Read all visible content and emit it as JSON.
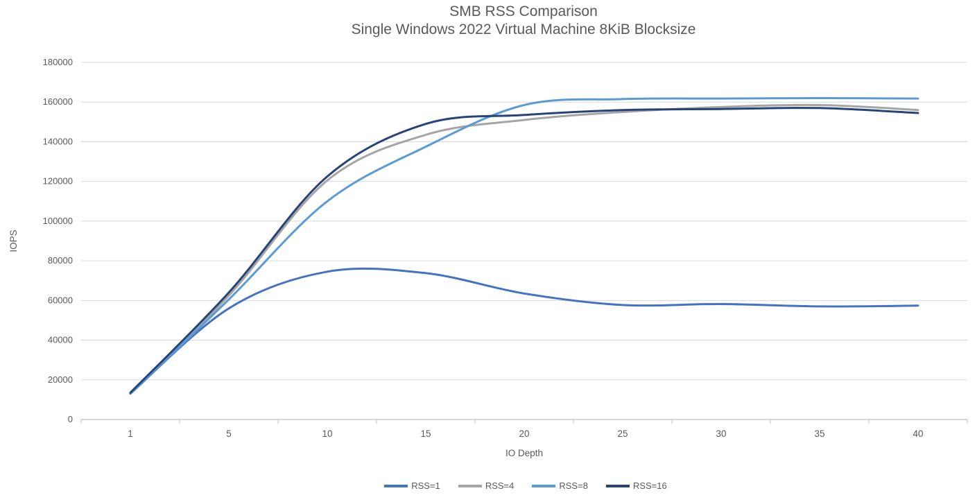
{
  "chart_data": {
    "type": "line",
    "title": "SMB RSS Comparison",
    "subtitle": "Single Windows 2022 Virtual Machine 8KiB Blocksize",
    "xlabel": "IO Depth",
    "ylabel": "IOPS",
    "categories": [
      1,
      5,
      10,
      15,
      20,
      25,
      30,
      35,
      40
    ],
    "series": [
      {
        "name": "RSS=1",
        "color": "#4472C4",
        "values": [
          13000,
          56000,
          74500,
          73800,
          63500,
          57700,
          58200,
          57000,
          57400
        ]
      },
      {
        "name": "RSS=4",
        "color": "#A5A5A5",
        "values": [
          13300,
          62500,
          120500,
          143500,
          151000,
          155000,
          157500,
          158500,
          156000
        ]
      },
      {
        "name": "RSS=8",
        "color": "#5B9BD5",
        "values": [
          13200,
          60500,
          110000,
          137500,
          158500,
          161500,
          161800,
          162000,
          161800
        ]
      },
      {
        "name": "RSS=16",
        "color": "#264478",
        "values": [
          13500,
          64000,
          122500,
          149000,
          153500,
          156000,
          156500,
          157000,
          154500
        ]
      }
    ],
    "ylim": [
      0,
      180000
    ],
    "ytick_step": 20000,
    "ytick_labels": [
      "0",
      "20000",
      "40000",
      "60000",
      "80000",
      "100000",
      "120000",
      "140000",
      "160000",
      "180000"
    ],
    "xtick_labels": [
      "1",
      "5",
      "10",
      "15",
      "20",
      "25",
      "30",
      "35",
      "40"
    ],
    "grid": true,
    "smoothed_lines": true,
    "legend_position": "bottom",
    "colors": {
      "background": "#ffffff",
      "gridline": "#D9D9D9",
      "axis_line": "#BFBFBF",
      "tick_mark": "#BFBFBF",
      "tick_label": "#595959",
      "axis_title": "#595959",
      "title_text": "#595959"
    }
  }
}
